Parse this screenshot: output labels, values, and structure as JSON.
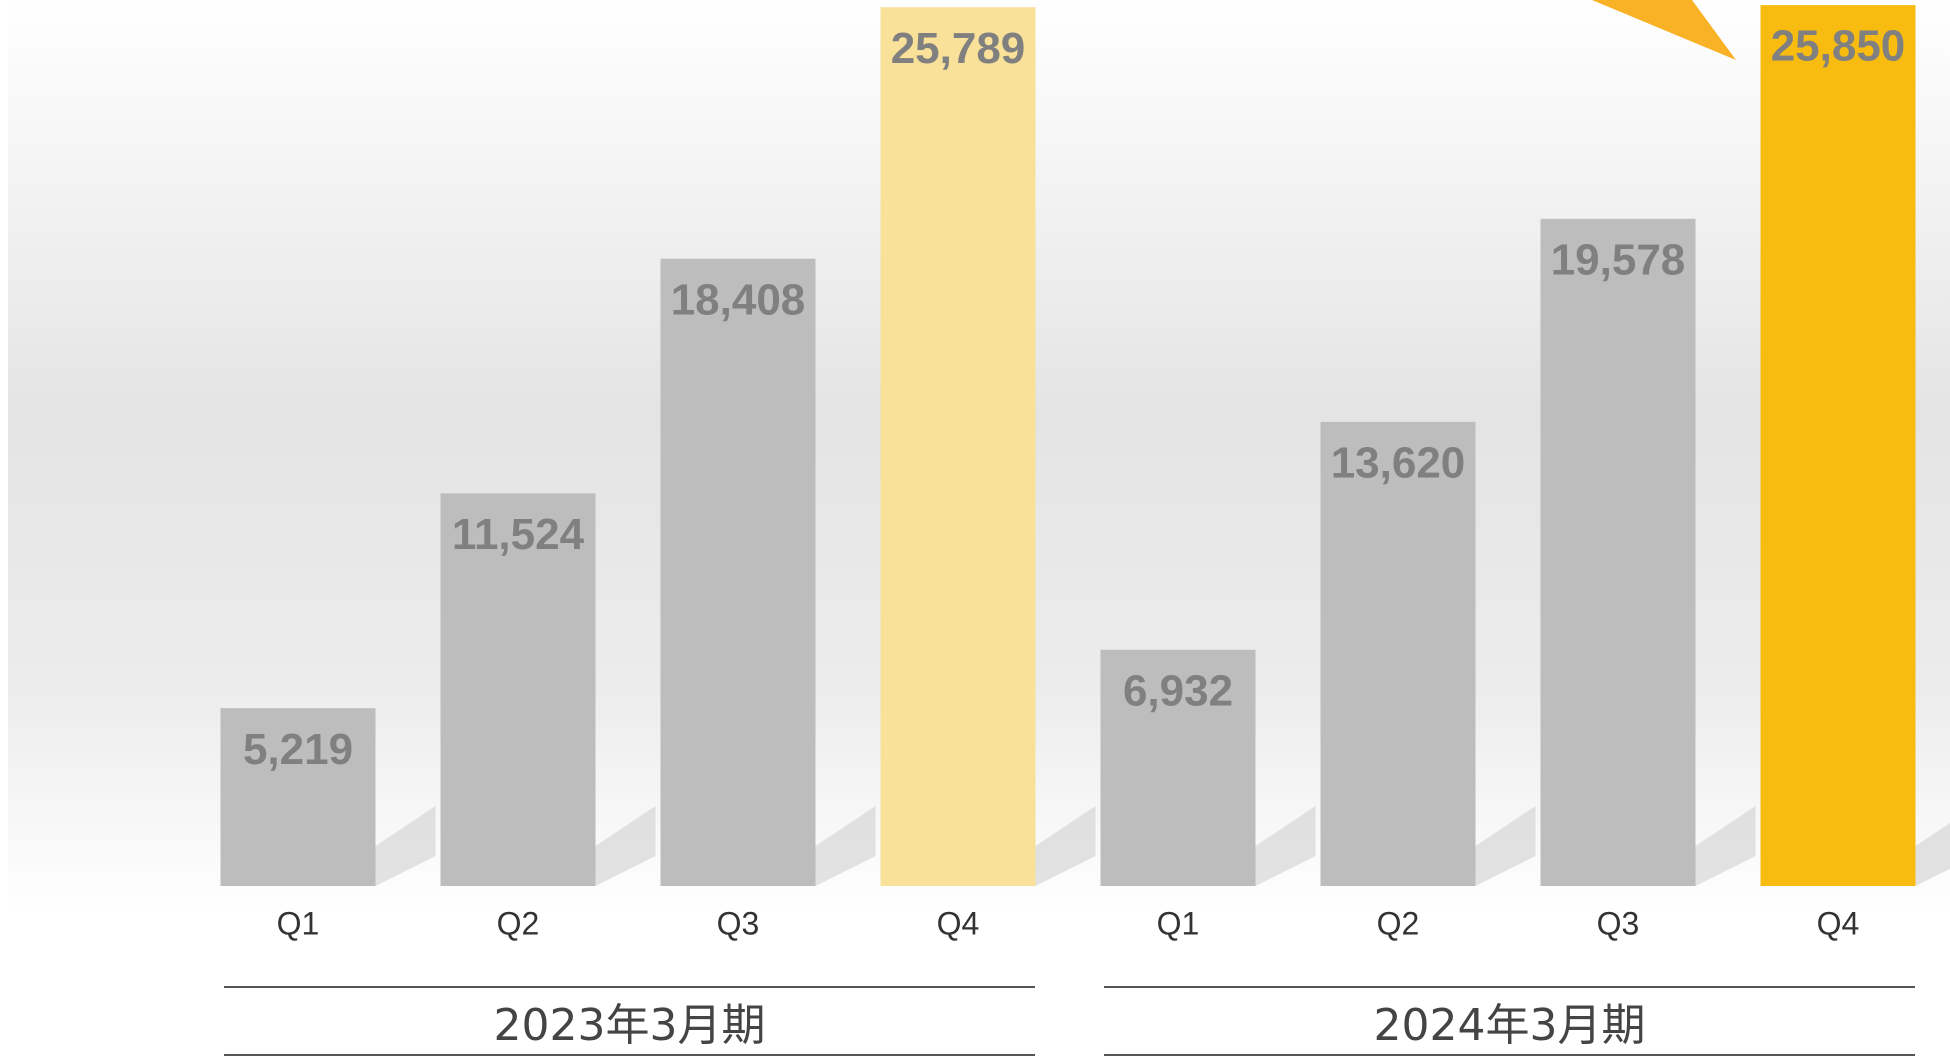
{
  "chart_data": {
    "type": "bar",
    "ylim": [
      0,
      26000
    ],
    "groups": [
      {
        "label": "2023年3月期",
        "categories": [
          "Q1",
          "Q2",
          "Q3",
          "Q4"
        ],
        "values": [
          5219,
          11524,
          18408,
          25789
        ],
        "value_labels": [
          "5,219",
          "11,524",
          "18,408",
          "25,789"
        ],
        "colors": [
          "#bdbdbd",
          "#bdbdbd",
          "#bdbdbd",
          "#f9e199"
        ]
      },
      {
        "label": "2024年3月期",
        "categories": [
          "Q1",
          "Q2",
          "Q3",
          "Q4"
        ],
        "values": [
          6932,
          13620,
          19578,
          25850
        ],
        "value_labels": [
          "6,932",
          "13,620",
          "19,578",
          "25,850"
        ],
        "colors": [
          "#bdbdbd",
          "#bdbdbd",
          "#bdbdbd",
          "#f8bb0f"
        ]
      }
    ]
  }
}
